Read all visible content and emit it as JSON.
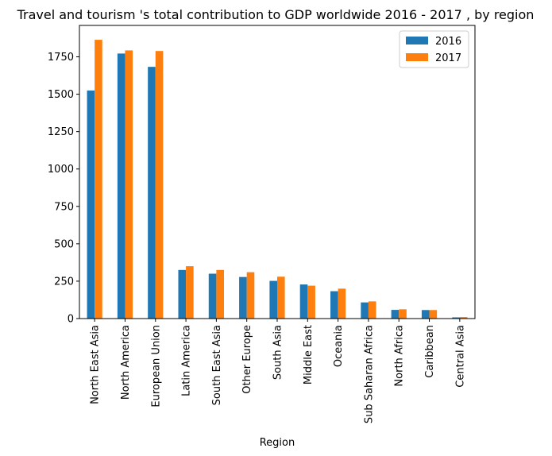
{
  "chart_data": {
    "type": "bar",
    "title": "Travel and tourism 's total contribution to GDP worldwide 2016 - 2017 , by region",
    "xlabel": "Region",
    "ylabel": "",
    "ylim": [
      0,
      1960
    ],
    "yticks": [
      0,
      250,
      500,
      750,
      1000,
      1250,
      1500,
      1750
    ],
    "categories": [
      "North East Asia",
      "North America",
      "European Union",
      "Latin America",
      "South East Asia",
      "Other Europe",
      "South Asia",
      "Middle East",
      "Oceania",
      "Sub Saharan Africa",
      "North Africa",
      "Caribbean",
      "Central Asia"
    ],
    "series": [
      {
        "name": "2016",
        "color": "#1f77b4",
        "values": [
          1525,
          1772,
          1683,
          325,
          300,
          278,
          252,
          228,
          183,
          108,
          58,
          57,
          8
        ]
      },
      {
        "name": "2017",
        "color": "#ff7f0e",
        "values": [
          1864,
          1793,
          1789,
          350,
          325,
          310,
          280,
          220,
          200,
          115,
          62,
          57,
          10
        ]
      }
    ],
    "legend_placement": "top-right",
    "grid": false
  }
}
